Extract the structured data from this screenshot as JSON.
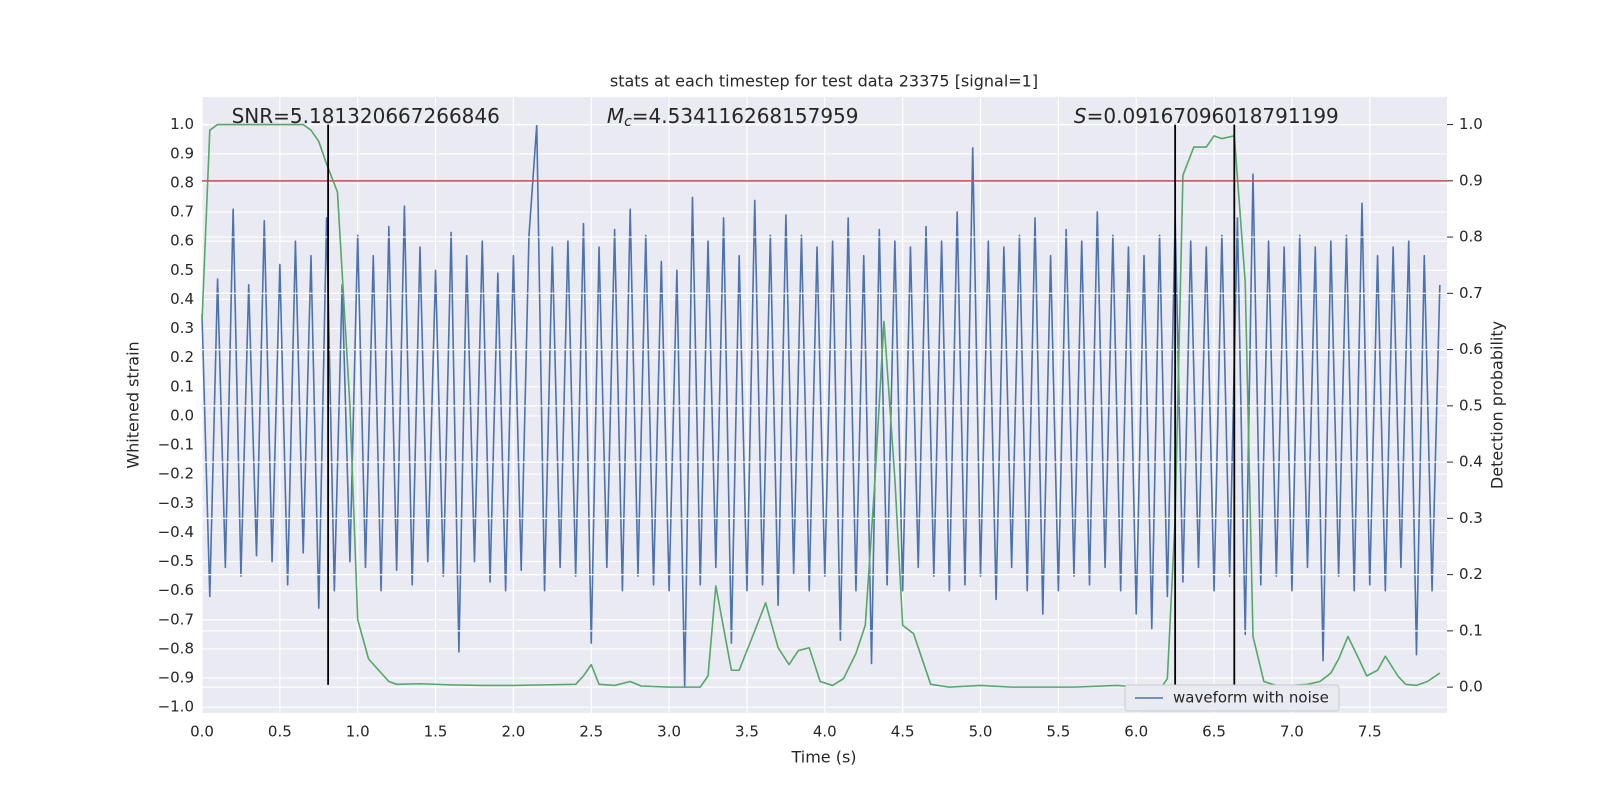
{
  "chart_data": {
    "type": "line",
    "title": "stats at each timestep for test data 23375 [signal=1]",
    "x_label": "Time (s)",
    "y_label": "Whitened strain",
    "y2_label": "Detection probability",
    "xlim": [
      0,
      7.996
    ],
    "ylim": [
      -1.02,
      1.095
    ],
    "y2lim": [
      -0.046,
      1.049
    ],
    "grid": true,
    "legend": "lower right",
    "xticks": [
      {
        "value": 0,
        "label": "0.0"
      },
      {
        "value": 0.5,
        "label": "0.5"
      },
      {
        "value": 1,
        "label": "1.0"
      },
      {
        "value": 1.5,
        "label": "1.5"
      },
      {
        "value": 2,
        "label": "2.0"
      },
      {
        "value": 2.5,
        "label": "2.5"
      },
      {
        "value": 3,
        "label": "3.0"
      },
      {
        "value": 3.5,
        "label": "3.5"
      },
      {
        "value": 4,
        "label": "4.0"
      },
      {
        "value": 4.5,
        "label": "4.5"
      },
      {
        "value": 5,
        "label": "5.0"
      },
      {
        "value": 5.5,
        "label": "5.5"
      },
      {
        "value": 6,
        "label": "6.0"
      },
      {
        "value": 6.5,
        "label": "6.5"
      },
      {
        "value": 7,
        "label": "7.0"
      },
      {
        "value": 7.5,
        "label": "7.5"
      }
    ],
    "yticks": [
      {
        "value": -1,
        "label": "−1.0"
      },
      {
        "value": -0.9,
        "label": "−0.9"
      },
      {
        "value": -0.8,
        "label": "−0.8"
      },
      {
        "value": -0.7,
        "label": "−0.7"
      },
      {
        "value": -0.6,
        "label": "−0.6"
      },
      {
        "value": -0.5,
        "label": "−0.5"
      },
      {
        "value": -0.4,
        "label": "−0.4"
      },
      {
        "value": -0.3,
        "label": "−0.3"
      },
      {
        "value": -0.2,
        "label": "−0.2"
      },
      {
        "value": -0.1,
        "label": "−0.1"
      },
      {
        "value": 0,
        "label": "0.0"
      },
      {
        "value": 0.1,
        "label": "0.1"
      },
      {
        "value": 0.2,
        "label": "0.2"
      },
      {
        "value": 0.3,
        "label": "0.3"
      },
      {
        "value": 0.4,
        "label": "0.4"
      },
      {
        "value": 0.5,
        "label": "0.5"
      },
      {
        "value": 0.6,
        "label": "0.6"
      },
      {
        "value": 0.7,
        "label": "0.7"
      },
      {
        "value": 0.8,
        "label": "0.8"
      },
      {
        "value": 0.9,
        "label": "0.9"
      },
      {
        "value": 1,
        "label": "1.0"
      }
    ],
    "y2ticks": [
      {
        "value": 0,
        "label": "0.0"
      },
      {
        "value": 0.1,
        "label": "0.1"
      },
      {
        "value": 0.2,
        "label": "0.2"
      },
      {
        "value": 0.3,
        "label": "0.3"
      },
      {
        "value": 0.4,
        "label": "0.4"
      },
      {
        "value": 0.5,
        "label": "0.5"
      },
      {
        "value": 0.6,
        "label": "0.6"
      },
      {
        "value": 0.7,
        "label": "0.7"
      },
      {
        "value": 0.8,
        "label": "0.8"
      },
      {
        "value": 0.9,
        "label": "0.9"
      },
      {
        "value": 1,
        "label": "1.0"
      }
    ],
    "annotations": [
      {
        "text": "SNR=5.181320667266846",
        "x": 0.19
      },
      {
        "symbol": "M",
        "sub": "c",
        "text": "=4.534116268157959",
        "x": 2.6
      },
      {
        "symbol": "S",
        "text": "=0.09167096018791199",
        "x": 5.6
      }
    ],
    "hlines": [
      {
        "value": 0.9,
        "axis": "y2",
        "color": "#c44e52"
      }
    ],
    "vlines": {
      "values": [
        0.81,
        6.25,
        6.63
      ],
      "y2range": [
        0.004,
        1.0
      ],
      "color": "#000000"
    },
    "series": [
      {
        "name": "waveform with noise",
        "color": "#4c72b0",
        "x": [
          0,
          0.05,
          0.1,
          0.15,
          0.2,
          0.25,
          0.3,
          0.35,
          0.4,
          0.45,
          0.5,
          0.55,
          0.6,
          0.65,
          0.7,
          0.75,
          0.8,
          0.85,
          0.9,
          0.95,
          1,
          1.05,
          1.1,
          1.15,
          1.2,
          1.25,
          1.3,
          1.35,
          1.4,
          1.45,
          1.5,
          1.55,
          1.6,
          1.65,
          1.7,
          1.75,
          1.8,
          1.85,
          1.9,
          1.95,
          2,
          2.05,
          2.1,
          2.15,
          2.2,
          2.25,
          2.3,
          2.35,
          2.4,
          2.45,
          2.5,
          2.55,
          2.6,
          2.65,
          2.7,
          2.75,
          2.8,
          2.85,
          2.9,
          2.95,
          3,
          3.05,
          3.1,
          3.15,
          3.2,
          3.25,
          3.3,
          3.35,
          3.4,
          3.45,
          3.5,
          3.55,
          3.6,
          3.65,
          3.7,
          3.75,
          3.8,
          3.85,
          3.9,
          3.95,
          4,
          4.05,
          4.1,
          4.15,
          4.2,
          4.25,
          4.3,
          4.35,
          4.4,
          4.45,
          4.5,
          4.55,
          4.6,
          4.65,
          4.7,
          4.75,
          4.8,
          4.85,
          4.9,
          4.95,
          5,
          5.05,
          5.1,
          5.15,
          5.2,
          5.25,
          5.3,
          5.35,
          5.4,
          5.45,
          5.5,
          5.55,
          5.6,
          5.65,
          5.7,
          5.75,
          5.8,
          5.85,
          5.9,
          5.95,
          6,
          6.05,
          6.1,
          6.15,
          6.2,
          6.25,
          6.3,
          6.35,
          6.4,
          6.45,
          6.5,
          6.55,
          6.6,
          6.65,
          6.7,
          6.75,
          6.8,
          6.85,
          6.9,
          6.95,
          7,
          7.05,
          7.1,
          7.15,
          7.2,
          7.25,
          7.3,
          7.35,
          7.4,
          7.45,
          7.5,
          7.55,
          7.6,
          7.65,
          7.7,
          7.75,
          7.8,
          7.85,
          7.9,
          7.95
        ],
        "values": [
          0.35,
          -0.62,
          0.47,
          -0.52,
          0.71,
          -0.55,
          0.45,
          -0.48,
          0.67,
          -0.5,
          0.52,
          -0.58,
          0.6,
          -0.47,
          0.55,
          -0.66,
          0.68,
          -0.6,
          0.45,
          -0.5,
          0.62,
          -0.52,
          0.55,
          -0.6,
          0.65,
          -0.53,
          0.72,
          -0.58,
          0.58,
          -0.5,
          0.5,
          -0.55,
          0.63,
          -0.81,
          0.55,
          -0.5,
          0.6,
          -0.57,
          0.49,
          -0.6,
          0.55,
          -0.53,
          0.62,
          1.0,
          -0.6,
          0.58,
          -0.52,
          0.6,
          -0.55,
          0.66,
          -0.78,
          0.58,
          -0.52,
          0.64,
          -0.6,
          0.71,
          -0.55,
          0.62,
          -0.58,
          0.53,
          -0.6,
          0.5,
          -0.93,
          0.75,
          -0.58,
          0.6,
          -0.52,
          0.68,
          -0.78,
          0.55,
          -0.6,
          0.74,
          -0.58,
          0.62,
          -0.65,
          0.69,
          -0.54,
          0.62,
          -0.6,
          0.58,
          -0.55,
          0.6,
          -0.77,
          0.68,
          -0.6,
          0.55,
          -0.85,
          0.64,
          -0.58,
          0.6,
          -0.6,
          0.58,
          -0.52,
          0.65,
          -0.55,
          0.6,
          -0.6,
          0.7,
          -0.58,
          0.92,
          -0.55,
          0.6,
          -0.63,
          0.58,
          -0.52,
          0.62,
          -0.6,
          0.68,
          -0.68,
          0.55,
          -0.6,
          0.64,
          -0.55,
          0.6,
          -0.58,
          0.7,
          -0.52,
          0.62,
          -0.6,
          0.58,
          -0.68,
          0.55,
          -0.73,
          0.62,
          -0.62,
          0.68,
          -0.57,
          0.6,
          -0.52,
          0.58,
          -0.6,
          0.62,
          -0.55,
          0.68,
          -0.75,
          0.83,
          -0.58,
          0.6,
          -0.55,
          0.58,
          -0.6,
          0.62,
          -0.52,
          0.58,
          -0.84,
          0.6,
          -0.55,
          0.62,
          -0.6,
          0.73,
          -0.58,
          0.55,
          -0.6,
          0.58,
          -0.52,
          0.6,
          -0.82,
          0.55,
          -0.6,
          0.45
        ]
      },
      {
        "color": "#55a868",
        "axis": "y2",
        "x": [
          0,
          0.05,
          0.1,
          0.2,
          0.3,
          0.4,
          0.5,
          0.6,
          0.65,
          0.7,
          0.75,
          0.8,
          0.87,
          0.95,
          1,
          1.07,
          1.2,
          1.25,
          1.4,
          1.6,
          1.8,
          2,
          2.2,
          2.4,
          2.45,
          2.5,
          2.55,
          2.65,
          2.75,
          2.82,
          3,
          3.2,
          3.25,
          3.3,
          3.4,
          3.45,
          3.55,
          3.62,
          3.7,
          3.77,
          3.83,
          3.9,
          3.97,
          4.05,
          4.12,
          4.2,
          4.26,
          4.32,
          4.38,
          4.45,
          4.5,
          4.57,
          4.68,
          4.8,
          5,
          5.2,
          5.6,
          5.88,
          6,
          6.17,
          6.2,
          6.25,
          6.3,
          6.37,
          6.45,
          6.5,
          6.55,
          6.63,
          6.7,
          6.75,
          6.82,
          6.9,
          7,
          7.1,
          7.18,
          7.25,
          7.3,
          7.36,
          7.43,
          7.48,
          7.55,
          7.6,
          7.68,
          7.73,
          7.8,
          7.87,
          7.95
        ],
        "values": [
          0.65,
          0.99,
          1.0,
          1.0,
          1.0,
          1.0,
          1.0,
          1.0,
          1.0,
          0.99,
          0.97,
          0.93,
          0.88,
          0.5,
          0.12,
          0.05,
          0.01,
          0.005,
          0.006,
          0.004,
          0.003,
          0.003,
          0.004,
          0.005,
          0.02,
          0.04,
          0.005,
          0.003,
          0.01,
          0.002,
          0.0,
          0.0,
          0.02,
          0.18,
          0.03,
          0.03,
          0.1,
          0.15,
          0.07,
          0.04,
          0.065,
          0.07,
          0.01,
          0.003,
          0.015,
          0.06,
          0.11,
          0.36,
          0.65,
          0.37,
          0.11,
          0.095,
          0.005,
          0.0,
          0.003,
          0.0,
          0.0,
          0.003,
          0.0,
          0.003,
          0.015,
          0.3,
          0.91,
          0.96,
          0.96,
          0.98,
          0.975,
          0.98,
          0.72,
          0.09,
          0.01,
          0.003,
          0.003,
          0.005,
          0.01,
          0.025,
          0.05,
          0.09,
          0.05,
          0.02,
          0.03,
          0.055,
          0.02,
          0.005,
          0.003,
          0.01,
          0.025
        ]
      }
    ]
  }
}
